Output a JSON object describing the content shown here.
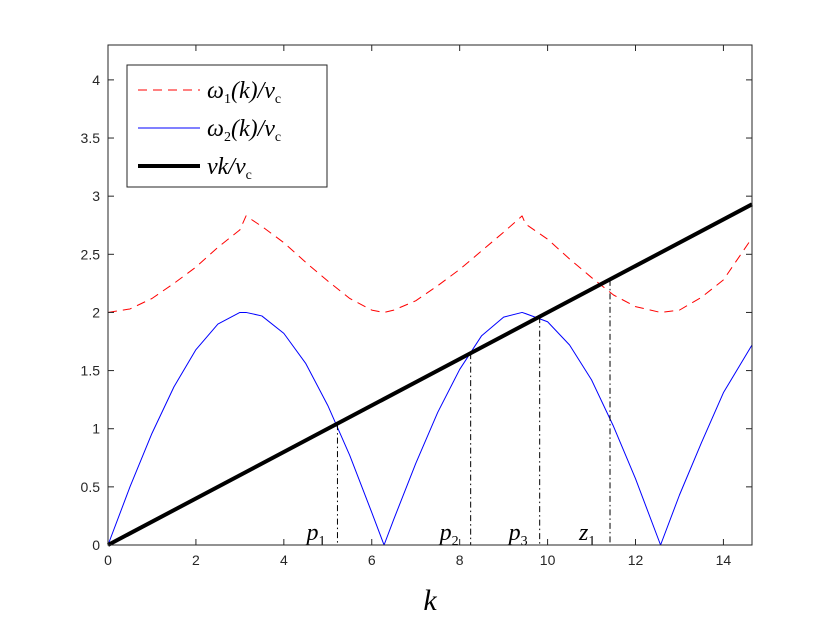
{
  "chart_data": {
    "type": "line",
    "xlabel": "k",
    "xlim": [
      0,
      14.65
    ],
    "ylim": [
      0,
      4.3
    ],
    "xticks": [
      0,
      2,
      4,
      6,
      8,
      10,
      12,
      14
    ],
    "xtick_labels": [
      "0",
      "2",
      "4",
      "6",
      "8",
      "10",
      "12",
      "14"
    ],
    "yticks": [
      0,
      0.5,
      1,
      1.5,
      2,
      2.5,
      3,
      3.5,
      4
    ],
    "ytick_labels": [
      "0",
      "0.5",
      "1",
      "1.5",
      "2",
      "2.5",
      "3",
      "3.5",
      "4"
    ],
    "grid": false,
    "legend_position": "top-left",
    "series": [
      {
        "key": "omega1",
        "name": "ω1(k)/vc",
        "legend": {
          "base": "ω",
          "sub": "1",
          "mid": "(k)/v",
          "sub2": "c"
        },
        "color": "#ff0000",
        "dash": "dashed",
        "x": [
          0,
          0.5,
          1,
          1.5,
          2,
          2.5,
          3,
          3.14,
          3.5,
          4,
          4.5,
          5,
          5.5,
          6,
          6.28,
          6.5,
          7,
          7.5,
          8,
          8.5,
          9,
          9.42,
          9.5,
          10,
          10.5,
          11,
          11.5,
          12,
          12.57,
          13,
          13.5,
          14,
          14.65
        ],
        "y": [
          2.0,
          2.03,
          2.12,
          2.25,
          2.39,
          2.56,
          2.71,
          2.83,
          2.74,
          2.6,
          2.43,
          2.27,
          2.12,
          2.02,
          2.0,
          2.02,
          2.1,
          2.23,
          2.37,
          2.53,
          2.69,
          2.83,
          2.76,
          2.63,
          2.46,
          2.3,
          2.15,
          2.05,
          2.0,
          2.02,
          2.13,
          2.28,
          2.64
        ]
      },
      {
        "key": "omega2",
        "name": "ω2(k)/vc",
        "legend": {
          "base": "ω",
          "sub": "2",
          "mid": "(k)/v",
          "sub2": "c"
        },
        "color": "#0000ff",
        "dash": "solid",
        "x": [
          0,
          0.5,
          1,
          1.5,
          2,
          2.5,
          3,
          3.14,
          3.5,
          4,
          4.5,
          5,
          5.5,
          6,
          6.28,
          6.5,
          7,
          7.5,
          8,
          8.5,
          9,
          9.42,
          9.5,
          10,
          10.5,
          11,
          11.5,
          12,
          12.57,
          13,
          13.5,
          14,
          14.65
        ],
        "y": [
          0,
          0.5,
          0.96,
          1.36,
          1.68,
          1.9,
          2.0,
          2.0,
          1.97,
          1.82,
          1.56,
          1.2,
          0.77,
          0.28,
          0,
          0.22,
          0.7,
          1.14,
          1.51,
          1.8,
          1.96,
          2.0,
          1.99,
          1.92,
          1.72,
          1.42,
          1.02,
          0.57,
          0,
          0.43,
          0.88,
          1.31,
          1.72
        ]
      },
      {
        "key": "line",
        "name": "vk/vc",
        "legend": {
          "base": "vk/v",
          "sub": "c",
          "mid": "",
          "sub2": ""
        },
        "color": "#000000",
        "dash": "thick",
        "x": [
          0,
          14.65
        ],
        "y": [
          0,
          2.93
        ]
      }
    ],
    "markers": [
      {
        "label": "p1",
        "base": "p",
        "sub": "1",
        "x": 5.22,
        "y": 1.04
      },
      {
        "label": "p2",
        "base": "p",
        "sub": "2",
        "x": 8.25,
        "y": 1.65
      },
      {
        "label": "p3",
        "base": "p",
        "sub": "3",
        "x": 9.82,
        "y": 1.96
      },
      {
        "label": "z1",
        "base": "z",
        "sub": "1",
        "x": 11.42,
        "y": 2.28
      }
    ]
  }
}
